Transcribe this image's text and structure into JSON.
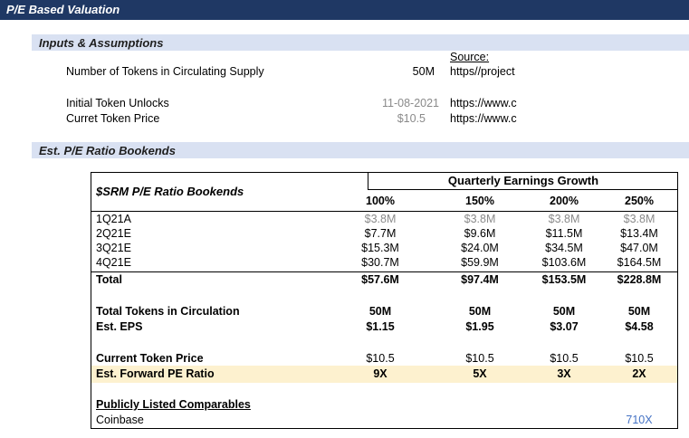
{
  "title": "P/E Based Valuation",
  "inputs": {
    "header": "Inputs & Assumptions",
    "source_label": "Source:",
    "rows": [
      {
        "label": "Number of Tokens in Circulating Supply",
        "value": "50M",
        "source": "https//project"
      },
      {
        "label": "Initial Token Unlocks",
        "value": "11-08-2021",
        "source": "https://www.c"
      },
      {
        "label": "Curret Token Price",
        "value": "$10.5",
        "source": "https://www.c"
      }
    ]
  },
  "bookends": {
    "header": "Est. P/E Ratio Bookends",
    "table_title": "$SRM P/E Ratio Bookends",
    "growth_header": "Quarterly Earnings Growth",
    "columns": [
      "100%",
      "150%",
      "200%",
      "250%"
    ],
    "quarters": [
      {
        "label": "1Q21A",
        "values": [
          "$3.8M",
          "$3.8M",
          "$3.8M",
          "$3.8M"
        ]
      },
      {
        "label": "2Q21E",
        "values": [
          "$7.7M",
          "$9.6M",
          "$11.5M",
          "$13.4M"
        ]
      },
      {
        "label": "3Q21E",
        "values": [
          "$15.3M",
          "$24.0M",
          "$34.5M",
          "$47.0M"
        ]
      },
      {
        "label": "4Q21E",
        "values": [
          "$30.7M",
          "$59.9M",
          "$103.6M",
          "$164.5M"
        ]
      }
    ],
    "total": {
      "label": "Total",
      "values": [
        "$57.6M",
        "$97.4M",
        "$153.5M",
        "$228.8M"
      ]
    },
    "tokens": {
      "label": "Total Tokens in Circulation",
      "values": [
        "50M",
        "50M",
        "50M",
        "50M"
      ]
    },
    "eps": {
      "label": "Est. EPS",
      "values": [
        "$1.15",
        "$1.95",
        "$3.07",
        "$4.58"
      ]
    },
    "price": {
      "label": "Current Token Price",
      "values": [
        "$10.5",
        "$10.5",
        "$10.5",
        "$10.5"
      ]
    },
    "pe": {
      "label": "Est. Forward PE Ratio",
      "values": [
        "9X",
        "5X",
        "3X",
        "2X"
      ]
    },
    "comparables_header": "Publicly Listed Comparables",
    "comparable": {
      "label": "Coinbase",
      "value": "710X"
    }
  },
  "colors": {
    "title_bar": "#1f3864",
    "section_bar": "#d9e1f2",
    "highlight": "#fdf1cf",
    "input_grey": "#8a8a8a",
    "link_blue": "#4472c4"
  }
}
